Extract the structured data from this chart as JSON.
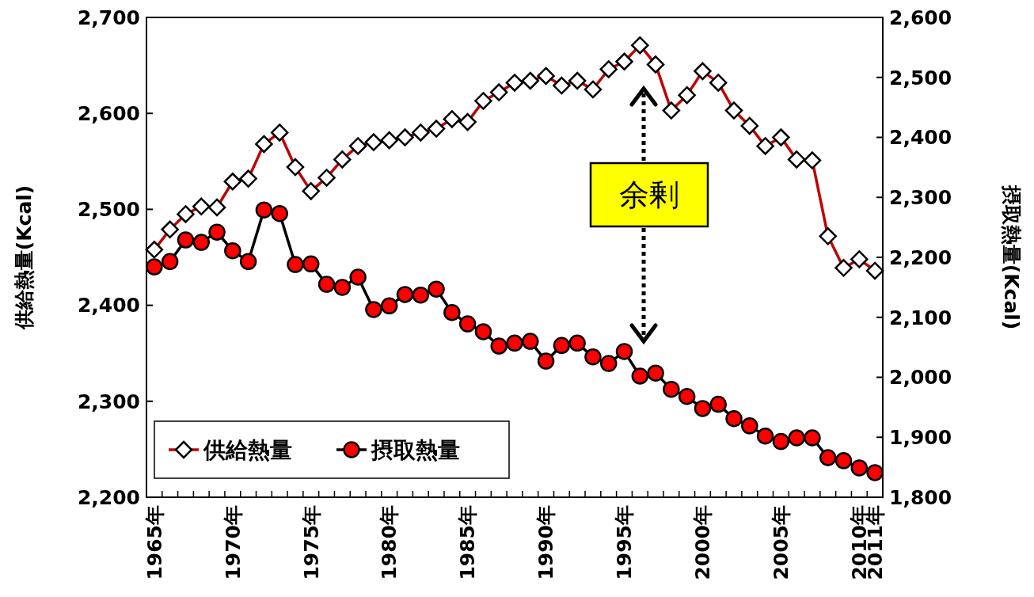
{
  "chart_data": {
    "type": "line",
    "ylabel": "供給熱量(Kcal)",
    "y2label": "摂取熱量(Kcal)",
    "categories": [
      "1965年",
      null,
      null,
      null,
      null,
      "1970年",
      null,
      null,
      null,
      null,
      "1975年",
      null,
      null,
      null,
      null,
      "1980年",
      null,
      null,
      null,
      null,
      "1985年",
      null,
      null,
      null,
      null,
      "1990年",
      null,
      null,
      null,
      null,
      "1995年",
      null,
      null,
      null,
      null,
      "2000年",
      null,
      null,
      null,
      null,
      "2005年",
      null,
      null,
      null,
      null,
      "2010年",
      "2011年"
    ],
    "series": [
      {
        "name": "供給熱量",
        "color": "#c00000",
        "marker": "diamond",
        "values": [
          2458,
          2479,
          2495,
          2503,
          2502,
          2529,
          2532,
          2568,
          2580,
          2544,
          2519,
          2533,
          2552,
          2566,
          2570,
          2572,
          2575,
          2580,
          2584,
          2594,
          2591,
          2613,
          2622,
          2632,
          2634,
          2639,
          2629,
          2634,
          2625,
          2646,
          2654,
          2671,
          2651,
          2603,
          2619,
          2644,
          2632,
          2603,
          2587,
          2566,
          2575,
          2552,
          2551,
          2472,
          2439,
          2448,
          2436
        ]
      },
      {
        "name": "摂取熱量",
        "color": "#ff0000",
        "marker": "circle",
        "axis": "y2",
        "values": [
          2184,
          2193,
          2229,
          2225,
          2242,
          2211,
          2193,
          2279,
          2273,
          2188,
          2189,
          2155,
          2150,
          2167,
          2113,
          2119,
          2138,
          2137,
          2147,
          2108,
          2089,
          2076,
          2052,
          2057,
          2060,
          2027,
          2053,
          2057,
          2034,
          2023,
          2043,
          2002,
          2007,
          1980,
          1968,
          1948,
          1955,
          1931,
          1919,
          1902,
          1893,
          1899,
          1899,
          1866,
          1861,
          1849,
          1841
        ]
      }
    ],
    "ylim": [
      2200,
      2700
    ],
    "yticks": [
      {
        "value": 2200,
        "label": "2,200"
      },
      {
        "value": 2300,
        "label": "2,300"
      },
      {
        "value": 2400,
        "label": "2,400"
      },
      {
        "value": 2500,
        "label": "2,500"
      },
      {
        "value": 2600,
        "label": "2,600"
      },
      {
        "value": 2700,
        "label": "2,700"
      }
    ],
    "y2lim": [
      1800,
      2600
    ],
    "y2ticks": [
      {
        "value": 1800,
        "label": "1,800"
      },
      {
        "value": 1900,
        "label": "1,900"
      },
      {
        "value": 2000,
        "label": "2,000"
      },
      {
        "value": 2100,
        "label": "2,100"
      },
      {
        "value": 2200,
        "label": "2,200"
      },
      {
        "value": 2300,
        "label": "2,300"
      },
      {
        "value": 2400,
        "label": "2,400"
      },
      {
        "value": 2500,
        "label": "2,500"
      },
      {
        "value": 2600,
        "label": "2,600"
      }
    ],
    "annotations": [
      "余剰"
    ],
    "legend": "bottom left",
    "grid": false
  }
}
